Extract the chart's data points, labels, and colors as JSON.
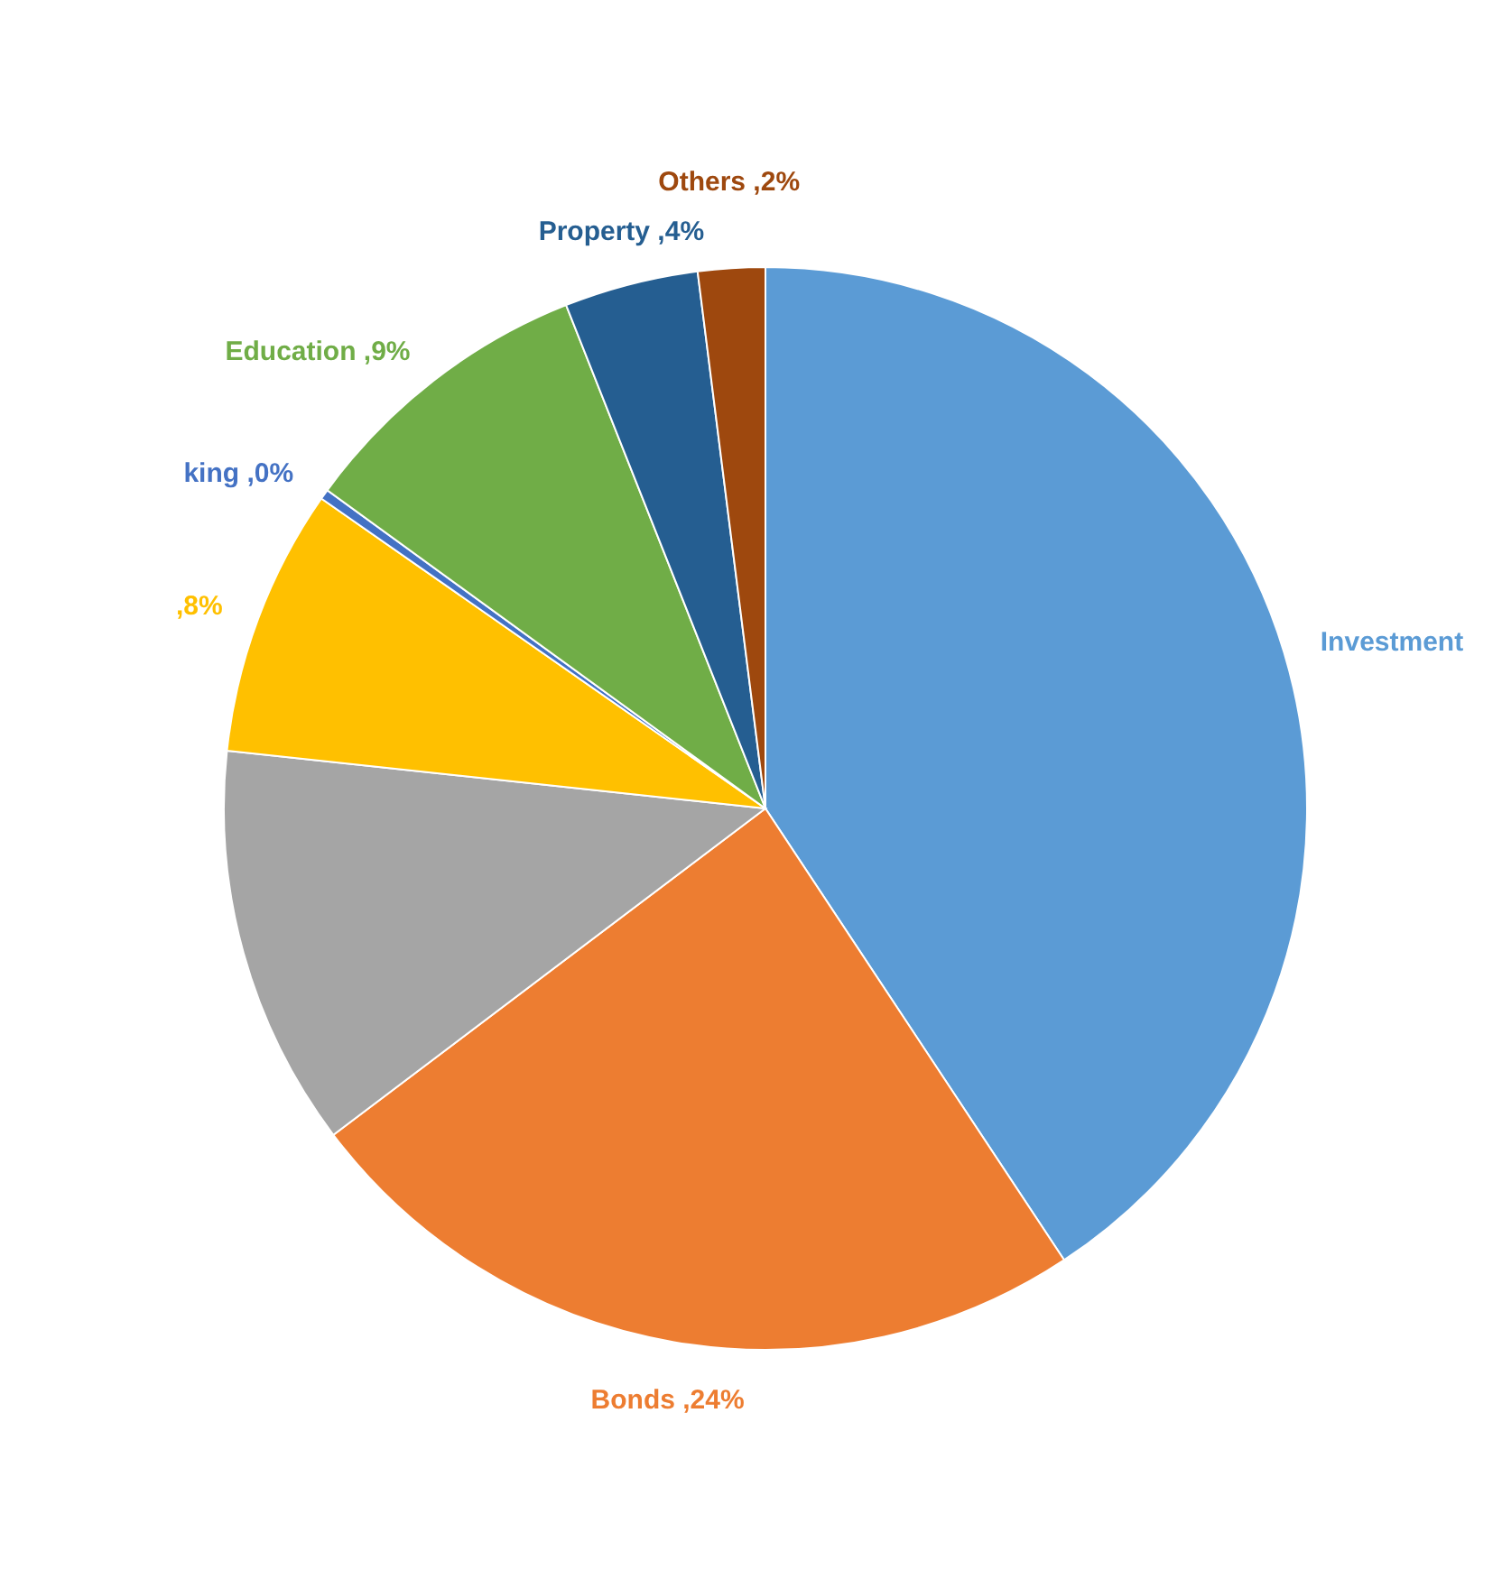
{
  "chart_data": {
    "type": "pie",
    "categories": [
      "Investment",
      "Bonds",
      null,
      null,
      "king",
      "Education",
      "Property",
      "Others"
    ],
    "values": [
      40.7,
      24,
      12,
      8,
      0.3,
      9,
      4,
      2
    ],
    "value_labels": [
      null,
      ",24%",
      null,
      ",8%",
      ",0%",
      ",9%",
      ",4%",
      ",2%"
    ],
    "colors": [
      "#5b9bd5",
      "#ed7d31",
      "#a5a5a5",
      "#ffc000",
      "#4472c4",
      "#70ad47",
      "#255e91",
      "#9e480e"
    ]
  }
}
